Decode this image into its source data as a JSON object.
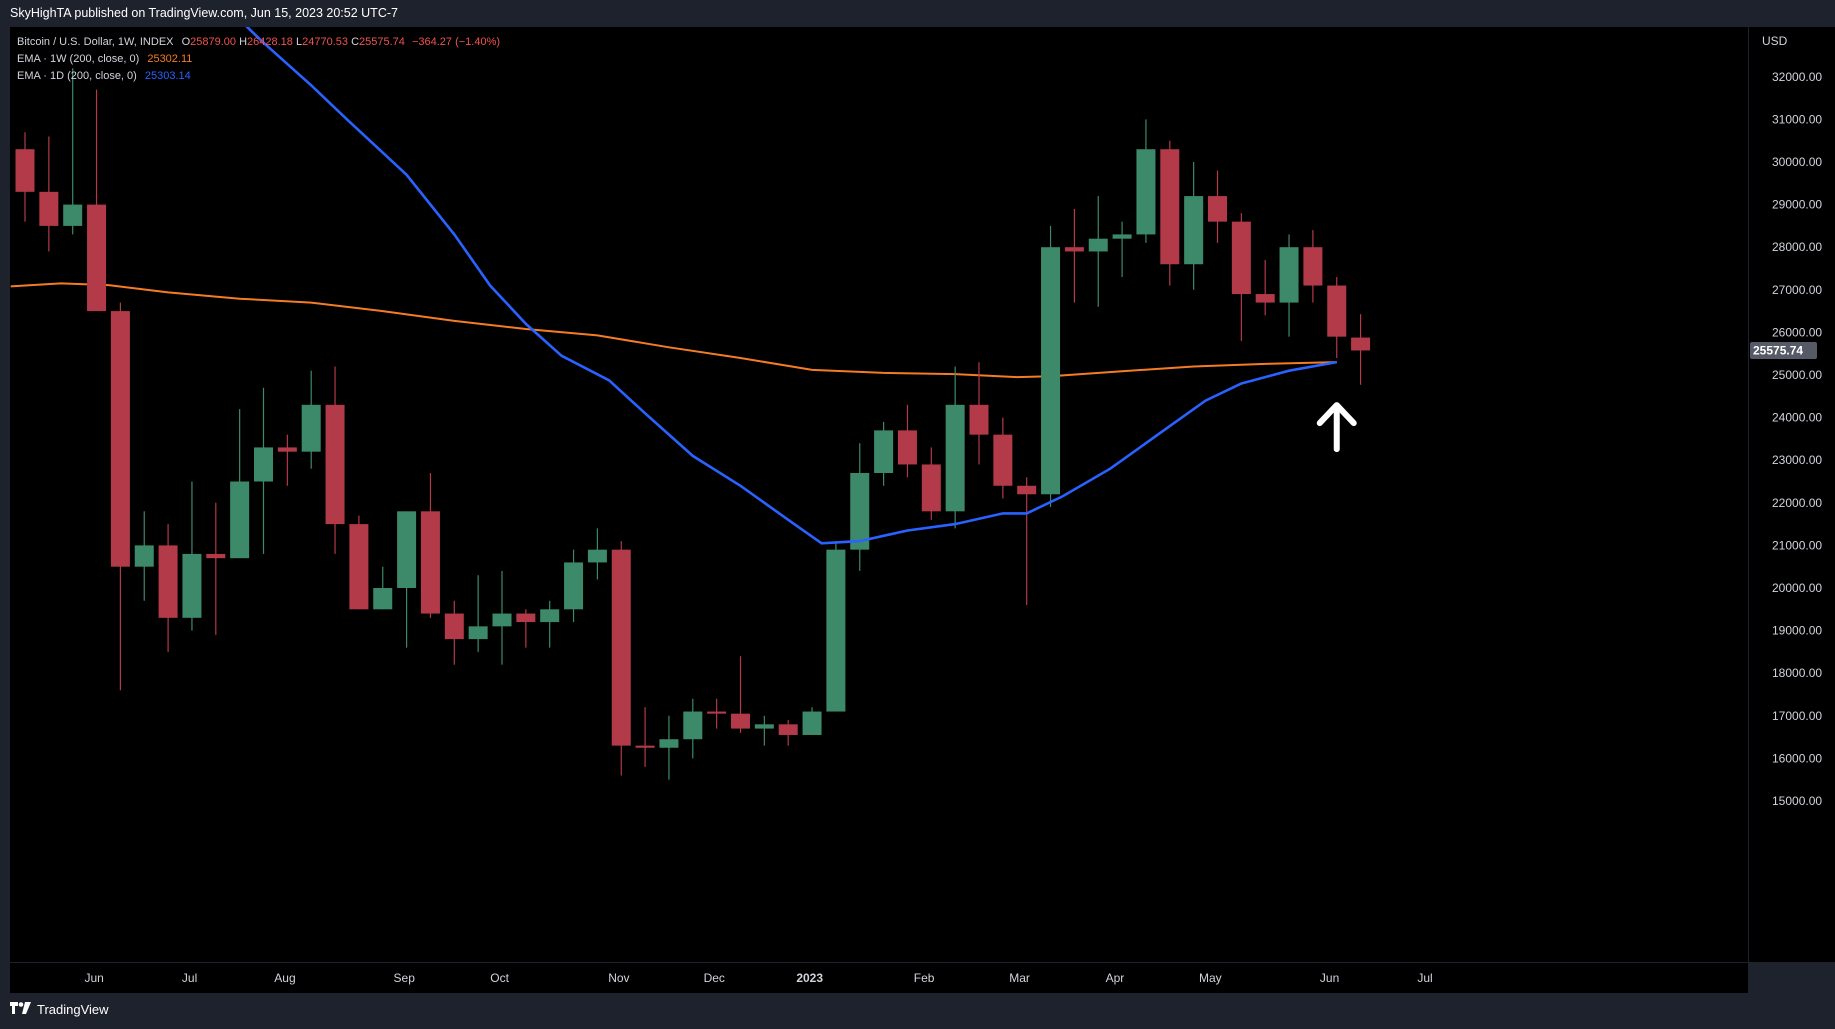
{
  "header": {
    "publisher": "SkyHighTA published on TradingView.com, Jun 15, 2023 20:52 UTC-7"
  },
  "legend": {
    "symbol": "Bitcoin / U.S. Dollar, 1W, INDEX",
    "ohlc": {
      "o_label": "O",
      "o_value": "25879.00",
      "h_label": "H",
      "h_value": "26428.18",
      "l_label": "L",
      "l_value": "24770.53",
      "c_label": "C",
      "c_value": "25575.74",
      "change": "−364.27 (−1.40%)"
    },
    "ema1_label": "EMA · 1W (200, close, 0)",
    "ema1_value": "25302.11",
    "ema2_label": "EMA · 1D (200, close, 0)",
    "ema2_value": "25303.14"
  },
  "footer": {
    "brand": "TradingView"
  },
  "colors": {
    "bull": "#26a69a",
    "bull_fill": "#3d8a6a",
    "bear": "#b33a48",
    "ema1w": "#f57c25",
    "ema1d": "#2962ff",
    "background": "#000000",
    "panel": "#1e222d",
    "price_tag": "#555a66"
  },
  "chart_data": {
    "type": "candlestick",
    "currency": "USD",
    "last_price_label": "25575.74",
    "ylim": [
      14650,
      33600
    ],
    "y_ticks": [
      15000,
      16000,
      17000,
      18000,
      19000,
      20000,
      21000,
      22000,
      23000,
      24000,
      25000,
      26000,
      27000,
      28000,
      29000,
      30000,
      31000,
      32000
    ],
    "x_ticks": [
      {
        "label": "Jun",
        "week": 2.9,
        "bold": false
      },
      {
        "label": "Jul",
        "week": 6.9,
        "bold": false
      },
      {
        "label": "Aug",
        "week": 10.9,
        "bold": false
      },
      {
        "label": "Sep",
        "week": 15.9,
        "bold": false
      },
      {
        "label": "Oct",
        "week": 19.9,
        "bold": false
      },
      {
        "label": "Nov",
        "week": 24.9,
        "bold": false
      },
      {
        "label": "Dec",
        "week": 28.9,
        "bold": false
      },
      {
        "label": "2023",
        "week": 32.9,
        "bold": true
      },
      {
        "label": "Feb",
        "week": 37.7,
        "bold": false
      },
      {
        "label": "Mar",
        "week": 41.7,
        "bold": false
      },
      {
        "label": "Apr",
        "week": 45.7,
        "bold": false
      },
      {
        "label": "May",
        "week": 49.7,
        "bold": false
      },
      {
        "label": "Jun",
        "week": 54.7,
        "bold": false
      },
      {
        "label": "Jul",
        "week": 58.7,
        "bold": false
      }
    ],
    "candles": [
      {
        "o": 30300,
        "h": 30700,
        "l": 28600,
        "c": 29300
      },
      {
        "o": 29300,
        "h": 30600,
        "l": 27900,
        "c": 28500
      },
      {
        "o": 28500,
        "h": 32200,
        "l": 28300,
        "c": 29000
      },
      {
        "o": 29000,
        "h": 31700,
        "l": 26500,
        "c": 26500
      },
      {
        "o": 26500,
        "h": 26700,
        "l": 17600,
        "c": 20500
      },
      {
        "o": 20500,
        "h": 21800,
        "l": 19700,
        "c": 21000
      },
      {
        "o": 21000,
        "h": 21500,
        "l": 18500,
        "c": 19300
      },
      {
        "o": 19300,
        "h": 22500,
        "l": 19000,
        "c": 20800
      },
      {
        "o": 20800,
        "h": 22000,
        "l": 18900,
        "c": 20700
      },
      {
        "o": 20700,
        "h": 24200,
        "l": 20700,
        "c": 22500
      },
      {
        "o": 22500,
        "h": 24700,
        "l": 20800,
        "c": 23300
      },
      {
        "o": 23300,
        "h": 23600,
        "l": 22400,
        "c": 23200
      },
      {
        "o": 23200,
        "h": 25100,
        "l": 22800,
        "c": 24300
      },
      {
        "o": 24300,
        "h": 25200,
        "l": 20800,
        "c": 21500
      },
      {
        "o": 21500,
        "h": 21700,
        "l": 19500,
        "c": 19500
      },
      {
        "o": 19500,
        "h": 20500,
        "l": 19500,
        "c": 20000
      },
      {
        "o": 20000,
        "h": 21800,
        "l": 18600,
        "c": 21800
      },
      {
        "o": 21800,
        "h": 22700,
        "l": 19300,
        "c": 19400
      },
      {
        "o": 19400,
        "h": 19700,
        "l": 18200,
        "c": 18800
      },
      {
        "o": 18800,
        "h": 20300,
        "l": 18500,
        "c": 19100
      },
      {
        "o": 19100,
        "h": 20400,
        "l": 18200,
        "c": 19400
      },
      {
        "o": 19400,
        "h": 19500,
        "l": 18600,
        "c": 19200
      },
      {
        "o": 19200,
        "h": 19700,
        "l": 18600,
        "c": 19500
      },
      {
        "o": 19500,
        "h": 20900,
        "l": 19200,
        "c": 20600
      },
      {
        "o": 20600,
        "h": 21400,
        "l": 20200,
        "c": 20900
      },
      {
        "o": 20900,
        "h": 21100,
        "l": 15600,
        "c": 16300
      },
      {
        "o": 16300,
        "h": 17200,
        "l": 15800,
        "c": 16250
      },
      {
        "o": 16250,
        "h": 17000,
        "l": 15500,
        "c": 16450
      },
      {
        "o": 16450,
        "h": 17400,
        "l": 16000,
        "c": 17100
      },
      {
        "o": 17100,
        "h": 17400,
        "l": 16700,
        "c": 17050
      },
      {
        "o": 17050,
        "h": 18400,
        "l": 16600,
        "c": 16700
      },
      {
        "o": 16700,
        "h": 17000,
        "l": 16300,
        "c": 16800
      },
      {
        "o": 16800,
        "h": 16900,
        "l": 16300,
        "c": 16550
      },
      {
        "o": 16550,
        "h": 17200,
        "l": 16600,
        "c": 17100
      },
      {
        "o": 17100,
        "h": 21100,
        "l": 17100,
        "c": 20900
      },
      {
        "o": 20900,
        "h": 23400,
        "l": 20400,
        "c": 22700
      },
      {
        "o": 22700,
        "h": 23900,
        "l": 22400,
        "c": 23700
      },
      {
        "o": 23700,
        "h": 24300,
        "l": 22600,
        "c": 22900
      },
      {
        "o": 22900,
        "h": 23300,
        "l": 21600,
        "c": 21800
      },
      {
        "o": 21800,
        "h": 25200,
        "l": 21400,
        "c": 24300
      },
      {
        "o": 24300,
        "h": 25300,
        "l": 22900,
        "c": 23600
      },
      {
        "o": 23600,
        "h": 24000,
        "l": 22100,
        "c": 22400
      },
      {
        "o": 22400,
        "h": 22600,
        "l": 19600,
        "c": 22200
      },
      {
        "o": 22200,
        "h": 28500,
        "l": 21900,
        "c": 28000
      },
      {
        "o": 28000,
        "h": 28900,
        "l": 26700,
        "c": 27900
      },
      {
        "o": 27900,
        "h": 29200,
        "l": 26600,
        "c": 28200
      },
      {
        "o": 28200,
        "h": 28600,
        "l": 27300,
        "c": 28300
      },
      {
        "o": 28300,
        "h": 31000,
        "l": 28100,
        "c": 30300
      },
      {
        "o": 30300,
        "h": 30500,
        "l": 27100,
        "c": 27600
      },
      {
        "o": 27600,
        "h": 30000,
        "l": 27000,
        "c": 29200
      },
      {
        "o": 29200,
        "h": 29800,
        "l": 28100,
        "c": 28600
      },
      {
        "o": 28600,
        "h": 28800,
        "l": 25800,
        "c": 26900
      },
      {
        "o": 26900,
        "h": 27700,
        "l": 26400,
        "c": 26700
      },
      {
        "o": 26700,
        "h": 28300,
        "l": 25900,
        "c": 28000
      },
      {
        "o": 28000,
        "h": 28400,
        "l": 26700,
        "c": 27100
      },
      {
        "o": 27100,
        "h": 27300,
        "l": 25400,
        "c": 25900
      },
      {
        "o": 25879,
        "h": 26428.18,
        "l": 24770.53,
        "c": 25575.74
      }
    ],
    "ema_1w": {
      "name": "EMA · 1W (200, close, 0)",
      "points": [
        [
          -0.6,
          27080
        ],
        [
          1.5,
          27150
        ],
        [
          3.5,
          27110
        ],
        [
          6,
          26940
        ],
        [
          9,
          26790
        ],
        [
          12,
          26700
        ],
        [
          15,
          26500
        ],
        [
          18,
          26270
        ],
        [
          21,
          26080
        ],
        [
          24,
          25930
        ],
        [
          27,
          25650
        ],
        [
          30,
          25400
        ],
        [
          33,
          25120
        ],
        [
          36,
          25050
        ],
        [
          39,
          25020
        ],
        [
          41.6,
          24950
        ],
        [
          43,
          24970
        ],
        [
          46,
          25090
        ],
        [
          49,
          25200
        ],
        [
          52,
          25260
        ],
        [
          55,
          25302
        ]
      ]
    },
    "ema_1d": {
      "name": "EMA · 1D (200, close, 0)",
      "points": [
        [
          8.7,
          33500
        ],
        [
          10,
          32800
        ],
        [
          12,
          31800
        ],
        [
          13.5,
          31000
        ],
        [
          16,
          29700
        ],
        [
          18,
          28300
        ],
        [
          19.5,
          27100
        ],
        [
          21,
          26200
        ],
        [
          22.5,
          25450
        ],
        [
          24.5,
          24870
        ],
        [
          26,
          24100
        ],
        [
          28,
          23100
        ],
        [
          30,
          22400
        ],
        [
          32,
          21600
        ],
        [
          33.4,
          21050
        ],
        [
          35,
          21100
        ],
        [
          37,
          21350
        ],
        [
          39,
          21500
        ],
        [
          41,
          21750
        ],
        [
          42,
          21750
        ],
        [
          43.5,
          22150
        ],
        [
          45.5,
          22800
        ],
        [
          47.5,
          23600
        ],
        [
          49.5,
          24400
        ],
        [
          51,
          24800
        ],
        [
          53,
          25100
        ],
        [
          55,
          25303
        ]
      ]
    },
    "annotation": {
      "type": "arrow-up",
      "week": 55,
      "value": 24200
    }
  }
}
